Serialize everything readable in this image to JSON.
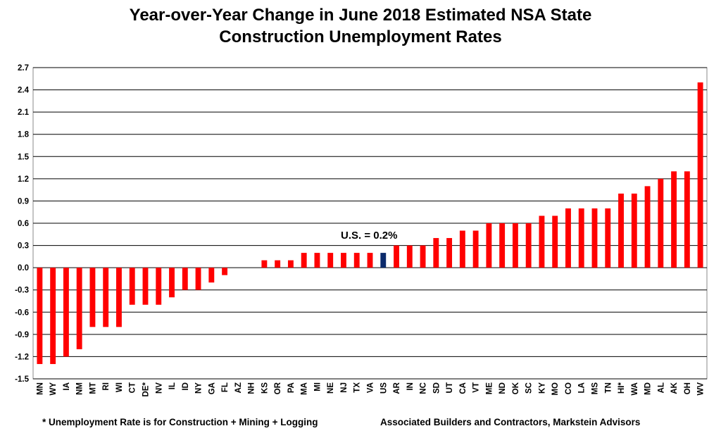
{
  "chart_data": {
    "type": "bar",
    "title_lines": [
      "Year-over-Year Change in June 2018 Estimated NSA State",
      "Construction Unemployment Rates"
    ],
    "xlabel": "",
    "ylabel": "",
    "ylim": [
      -1.5,
      2.7
    ],
    "yticks": [
      "2.7",
      "2.4",
      "2.1",
      "1.8",
      "1.5",
      "1.2",
      "0.9",
      "0.6",
      "0.3",
      "0.0",
      "-0.3",
      "-0.6",
      "-0.9",
      "-1.2",
      "-1.5"
    ],
    "grid": true,
    "categories": [
      "MN",
      "WY",
      "IA",
      "NM",
      "MT",
      "RI",
      "WI",
      "CT",
      "DE*",
      "NV",
      "IL",
      "ID",
      "NY",
      "GA",
      "FL",
      "AZ",
      "NH",
      "KS",
      "OR",
      "PA",
      "MA",
      "MI",
      "NE",
      "NJ",
      "TX",
      "VA",
      "US",
      "AR",
      "IN",
      "NC",
      "SD",
      "UT",
      "CA",
      "VT",
      "ME",
      "ND",
      "OK",
      "SC",
      "KY",
      "MO",
      "CO",
      "LA",
      "MS",
      "TN",
      "HI*",
      "WA",
      "MD",
      "AL",
      "AK",
      "OH",
      "WV"
    ],
    "values": [
      -1.3,
      -1.3,
      -1.2,
      -1.1,
      -0.8,
      -0.8,
      -0.8,
      -0.5,
      -0.5,
      -0.5,
      -0.4,
      -0.3,
      -0.3,
      -0.2,
      -0.1,
      0.0,
      0.0,
      0.1,
      0.1,
      0.1,
      0.2,
      0.2,
      0.2,
      0.2,
      0.2,
      0.2,
      0.2,
      0.3,
      0.3,
      0.3,
      0.4,
      0.4,
      0.5,
      0.5,
      0.6,
      0.6,
      0.6,
      0.6,
      0.7,
      0.7,
      0.8,
      0.8,
      0.8,
      0.8,
      1.0,
      1.0,
      1.1,
      1.2,
      1.3,
      1.3,
      2.5
    ],
    "highlight_category": "US",
    "bar_color": "#ff0000",
    "highlight_color": "#0b2a6b",
    "annotation": "U.S. = 0.2%"
  },
  "footnotes": {
    "left": "* Unemployment Rate is for Construction + Mining + Logging",
    "right": "Associated Builders and Contractors, Markstein Advisors"
  }
}
